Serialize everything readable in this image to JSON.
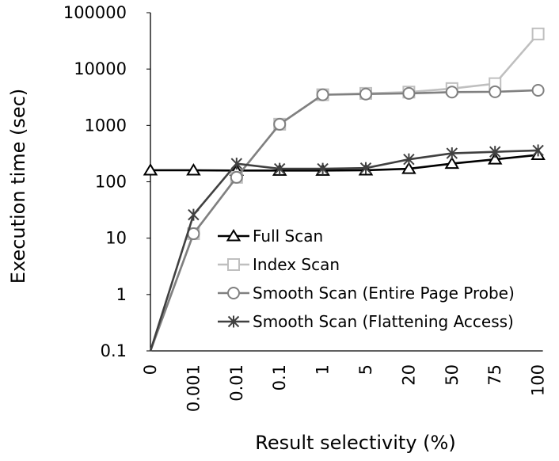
{
  "chart_data": {
    "type": "line",
    "xlabel": "Result selectivity (%)",
    "ylabel": "Execution time (sec)",
    "yscale": "log",
    "ylim": [
      0.1,
      100000
    ],
    "yticks": [
      "0.1",
      "1",
      "10",
      "100",
      "1000",
      "10000",
      "100000"
    ],
    "categories": [
      "0",
      "0.001",
      "0.01",
      "0.1",
      "1",
      "5",
      "20",
      "50",
      "75",
      "100"
    ],
    "grid": false,
    "legend_position": "bottom-right",
    "series": [
      {
        "name": "Full Scan",
        "marker": "triangle",
        "color": "#000000",
        "values": [
          160,
          160,
          158,
          158,
          158,
          160,
          170,
          210,
          250,
          300
        ]
      },
      {
        "name": "Index Scan",
        "marker": "square",
        "color": "#bfbfbf",
        "values": [
          0.1,
          12,
          120,
          1050,
          3500,
          3700,
          3900,
          4500,
          5500,
          42000
        ]
      },
      {
        "name": "Smooth Scan (Entire Page Probe)",
        "marker": "circle",
        "color": "#808080",
        "values": [
          0.1,
          12,
          120,
          1050,
          3500,
          3600,
          3700,
          3900,
          3950,
          4200
        ]
      },
      {
        "name": "Smooth Scan (Flattening Access)",
        "marker": "asterisk",
        "color": "#404040",
        "values": [
          0.1,
          26,
          210,
          170,
          170,
          175,
          250,
          320,
          340,
          360
        ]
      }
    ]
  }
}
